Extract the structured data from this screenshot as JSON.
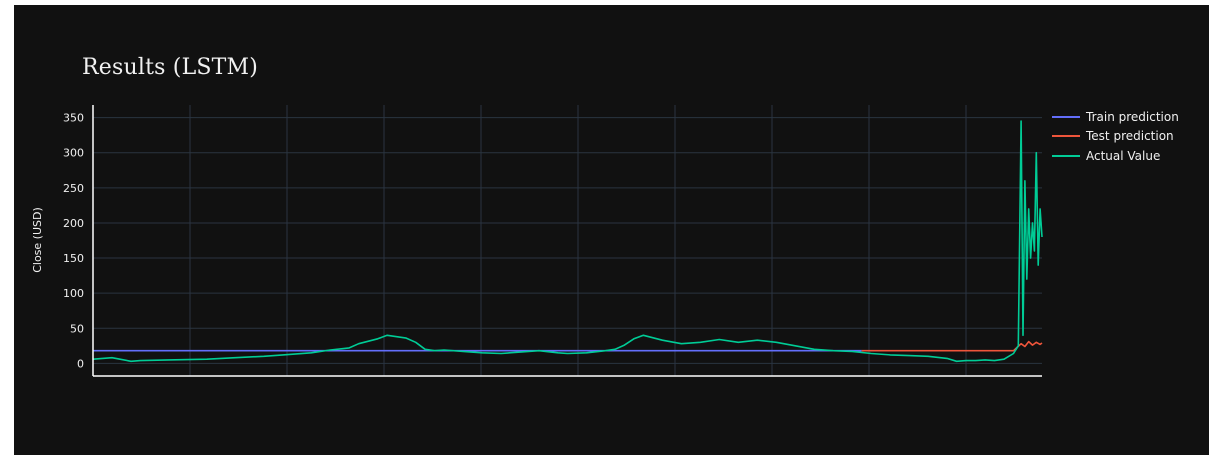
{
  "chart_data": {
    "type": "line",
    "title": "Results (LSTM)",
    "xlabel": "",
    "ylabel": "Close (USD)",
    "ylim": [
      -18,
      368
    ],
    "yticks": [
      0,
      50,
      100,
      150,
      200,
      250,
      300,
      350
    ],
    "grid": true,
    "legend_position": "right",
    "colors": {
      "background": "#111111",
      "grid": "#2a3441",
      "axis": "#ffffff"
    },
    "series": [
      {
        "name": "Train prediction",
        "color": "#636efa",
        "x": [
          0,
          0.81
        ],
        "y": [
          18,
          18
        ]
      },
      {
        "name": "Test prediction",
        "color": "#ef553b",
        "x": [
          0.81,
          0.97,
          0.978,
          0.982,
          0.986,
          0.99,
          0.994,
          0.998,
          1.0
        ],
        "y": [
          18,
          18,
          28,
          24,
          31,
          26,
          30,
          27,
          29
        ]
      },
      {
        "name": "Actual Value",
        "color": "#00cc96",
        "x": [
          0,
          0.02,
          0.04,
          0.05,
          0.08,
          0.12,
          0.15,
          0.18,
          0.2,
          0.23,
          0.25,
          0.27,
          0.28,
          0.3,
          0.31,
          0.32,
          0.33,
          0.34,
          0.35,
          0.36,
          0.37,
          0.39,
          0.41,
          0.43,
          0.45,
          0.47,
          0.49,
          0.5,
          0.52,
          0.54,
          0.55,
          0.56,
          0.57,
          0.58,
          0.6,
          0.62,
          0.64,
          0.66,
          0.68,
          0.7,
          0.72,
          0.74,
          0.76,
          0.78,
          0.8,
          0.82,
          0.84,
          0.86,
          0.88,
          0.9,
          0.91,
          0.92,
          0.93,
          0.94,
          0.95,
          0.96,
          0.97,
          0.975,
          0.978,
          0.98,
          0.982,
          0.984,
          0.986,
          0.988,
          0.99,
          0.992,
          0.994,
          0.996,
          0.998,
          1.0
        ],
        "y": [
          6,
          8,
          3,
          4,
          5,
          6,
          8,
          10,
          12,
          15,
          19,
          22,
          28,
          35,
          40,
          38,
          36,
          30,
          20,
          18,
          19,
          17,
          15,
          14,
          16,
          18,
          15,
          14,
          15,
          18,
          20,
          26,
          35,
          40,
          33,
          28,
          30,
          34,
          30,
          33,
          30,
          25,
          20,
          18,
          17,
          14,
          12,
          11,
          10,
          7,
          3,
          4,
          4,
          5,
          4,
          6,
          14,
          25,
          345,
          40,
          260,
          120,
          220,
          150,
          200,
          160,
          300,
          140,
          220,
          180
        ]
      }
    ]
  }
}
